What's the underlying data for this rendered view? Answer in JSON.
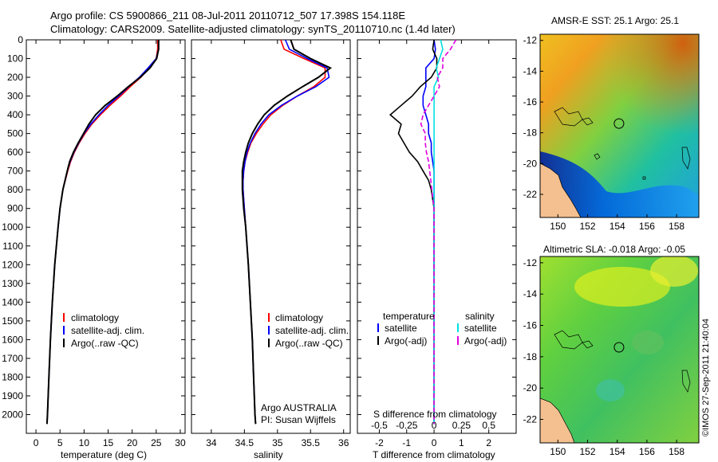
{
  "header": {
    "title_line1": "Argo profile: CS 5900866_211 08-Jul-2011 20110712_507 17.398S 154.118E",
    "title_line2": "Climatology: CARS2009. Satellite-adjusted climatology: synTS_20110710.nc (1.4d later)"
  },
  "stamp": "©IMOS 27-Sep-2011 21:40:04",
  "colors": {
    "climatology": "#ff0000",
    "satellite": "#0000ff",
    "argo": "#000000",
    "sal_satellite": "#00e0e0",
    "sal_argo": "#e000e0"
  },
  "chart_data": [
    {
      "type": "line",
      "id": "temperature-profile",
      "xlabel": "temperature (deg C)",
      "xlim": [
        -2,
        31
      ],
      "xticks": [
        0,
        5,
        10,
        15,
        20,
        25,
        30
      ],
      "ylim": [
        0,
        2100
      ],
      "yticks": [
        0,
        100,
        200,
        300,
        400,
        500,
        600,
        700,
        800,
        900,
        1000,
        1100,
        1200,
        1300,
        1400,
        1500,
        1600,
        1700,
        1800,
        1900,
        2000
      ],
      "depth": [
        0,
        50,
        100,
        150,
        200,
        250,
        300,
        350,
        400,
        450,
        500,
        550,
        600,
        650,
        700,
        800,
        900,
        1000,
        1200,
        1400,
        1600,
        1800,
        2000,
        2050
      ],
      "series": [
        {
          "name": "climatology",
          "values": [
            25.3,
            25.3,
            25.0,
            23.6,
            21.8,
            19.6,
            17.6,
            15.4,
            13.4,
            11.6,
            10.2,
            9.0,
            8.0,
            7.2,
            6.6,
            5.6,
            5.0,
            4.6,
            3.9,
            3.4,
            3.0,
            2.7,
            2.4,
            2.3
          ]
        },
        {
          "name": "satellite-adj. clim.",
          "values": [
            25.5,
            25.5,
            25.0,
            23.3,
            21.5,
            19.3,
            17.2,
            15.0,
            13.1,
            11.4,
            10.0,
            8.9,
            7.9,
            7.1,
            6.5,
            5.6,
            5.0,
            4.6,
            3.9,
            3.4,
            3.0,
            2.7,
            2.4,
            2.3
          ]
        },
        {
          "name": "Argo(..raw -QC)",
          "values": [
            25.5,
            25.5,
            25.1,
            23.7,
            21.7,
            19.2,
            16.9,
            14.4,
            12.4,
            11.0,
            9.9,
            8.8,
            7.8,
            7.0,
            6.5,
            5.6,
            5.0,
            4.6,
            3.9,
            3.4,
            3.0,
            2.7,
            2.4,
            2.3
          ]
        }
      ],
      "legend": [
        "climatology",
        "satellite-adj. clim.",
        "Argo(..raw -QC)"
      ]
    },
    {
      "type": "line",
      "id": "salinity-profile",
      "xlabel": "salinity",
      "xlim": [
        33.7,
        36.1
      ],
      "xticks": [
        34,
        34.5,
        35,
        35.5,
        36
      ],
      "xticklabels": [
        "34",
        "34.5",
        "35",
        "35.5",
        "36"
      ],
      "ylim": [
        0,
        2100
      ],
      "depth": [
        0,
        50,
        100,
        150,
        200,
        250,
        300,
        350,
        400,
        450,
        500,
        550,
        600,
        650,
        700,
        750,
        800,
        900,
        1000,
        1200,
        1400,
        1600,
        1800,
        2000,
        2050
      ],
      "series": [
        {
          "name": "climatology",
          "values": [
            35.05,
            35.1,
            35.4,
            35.72,
            35.72,
            35.55,
            35.3,
            35.08,
            34.9,
            34.78,
            34.68,
            34.6,
            34.55,
            34.51,
            34.49,
            34.48,
            34.48,
            34.5,
            34.52,
            34.56,
            34.59,
            34.62,
            34.64,
            34.66,
            34.67
          ]
        },
        {
          "name": "satellite-adj. clim.",
          "values": [
            35.12,
            35.18,
            35.45,
            35.75,
            35.78,
            35.58,
            35.3,
            35.06,
            34.87,
            34.75,
            34.66,
            34.59,
            34.54,
            34.51,
            34.49,
            34.48,
            34.48,
            34.5,
            34.52,
            34.56,
            34.59,
            34.62,
            34.64,
            34.66,
            34.67
          ]
        },
        {
          "name": "Argo(..raw -QC)",
          "values": [
            35.2,
            35.25,
            35.5,
            35.8,
            35.62,
            35.38,
            35.15,
            34.95,
            34.8,
            34.7,
            34.62,
            34.56,
            34.52,
            34.49,
            34.47,
            34.47,
            34.47,
            34.49,
            34.52,
            34.56,
            34.59,
            34.62,
            34.64,
            34.66,
            34.67
          ]
        }
      ],
      "legend": [
        "climatology",
        "satellite-adj. clim.",
        "Argo(..raw -QC)"
      ],
      "annotation": [
        "Argo AUSTRALIA",
        "PI: Susan Wijffels"
      ]
    },
    {
      "type": "line",
      "id": "difference-profile",
      "xlabel": "T difference from climatology",
      "xlim": [
        -2.8,
        3.0
      ],
      "xticks": [
        -2,
        -1,
        0,
        1,
        2
      ],
      "s_axis_label": "S difference from climatology",
      "s_ticks": [
        -0.5,
        -0.25,
        0,
        0.25,
        0.5
      ],
      "s_ticklabels": [
        "-0.5",
        "-0.25",
        "0",
        "0.25",
        "0.5"
      ],
      "s_scale": 4,
      "ylim": [
        0,
        2100
      ],
      "depth": [
        0,
        50,
        100,
        150,
        200,
        250,
        300,
        350,
        400,
        450,
        500,
        550,
        600,
        650,
        700,
        750,
        800,
        900,
        1000,
        1200,
        1400,
        1600,
        1800,
        2000,
        2050
      ],
      "series": [
        {
          "name": "temperature satellite",
          "quantity": "T",
          "values": [
            0.0,
            0.05,
            0.0,
            -0.3,
            -0.3,
            -0.3,
            -0.4,
            -0.4,
            -0.3,
            -0.2,
            -0.2,
            -0.1,
            -0.1,
            -0.05,
            0.0,
            0.0,
            0.0,
            0.0,
            0.0,
            0.0,
            0.0,
            0.0,
            0.0,
            0.0,
            0.0
          ]
        },
        {
          "name": "temperature Argo(-adj)",
          "quantity": "T",
          "values": [
            0.0,
            -0.05,
            0.1,
            0.1,
            -0.1,
            -0.5,
            -0.8,
            -1.2,
            -1.6,
            -1.2,
            -1.3,
            -1.1,
            -0.9,
            -0.6,
            -0.4,
            -0.2,
            -0.1,
            0.0,
            0.0,
            0.0,
            0.0,
            0.0,
            0.0,
            0.0,
            0.0
          ]
        },
        {
          "name": "salinity satellite",
          "quantity": "S",
          "values": [
            0.06,
            0.08,
            0.05,
            0.02,
            0.04,
            0.0,
            0.0,
            0.0,
            0.0,
            0.0,
            0.0,
            0.0,
            0.0,
            0.0,
            0.0,
            0.0,
            0.0,
            0.0,
            0.0,
            0.0,
            0.0,
            0.0,
            0.0,
            0.0,
            0.0
          ]
        },
        {
          "name": "salinity Argo(-adj)",
          "quantity": "S",
          "values": [
            0.2,
            0.15,
            0.08,
            0.08,
            0.03,
            0.05,
            0.0,
            -0.05,
            -0.1,
            -0.12,
            -0.08,
            -0.08,
            -0.07,
            -0.05,
            -0.04,
            -0.03,
            -0.02,
            0.0,
            0.0,
            0.0,
            0.0,
            0.0,
            0.0,
            0.0,
            0.0
          ]
        }
      ],
      "legend_headers": [
        "temperature",
        "salinity"
      ],
      "legend": [
        "satellite",
        "Argo(-adj)",
        "satellite",
        "Argo(-adj)"
      ]
    },
    {
      "type": "heatmap",
      "id": "sst-map",
      "title": "AMSR-E SST: 25.1  Argo: 25.1",
      "xlim": [
        148.8,
        159.5
      ],
      "ylim": [
        -23.5,
        -11.6
      ],
      "xticks": [
        150,
        152,
        154,
        156,
        158
      ],
      "yticks": [
        -12,
        -14,
        -16,
        -18,
        -20,
        -22
      ],
      "marker": {
        "lon": 154.118,
        "lat": -17.398
      }
    },
    {
      "type": "heatmap",
      "id": "sla-map",
      "title": "Altimetric SLA: -0.018  Argo: -0.05",
      "xlim": [
        148.8,
        159.5
      ],
      "ylim": [
        -23.5,
        -11.6
      ],
      "xticks": [
        150,
        152,
        154,
        156,
        158
      ],
      "yticks": [
        -12,
        -14,
        -16,
        -18,
        -20,
        -22
      ],
      "marker": {
        "lon": 154.118,
        "lat": -17.398
      }
    }
  ]
}
